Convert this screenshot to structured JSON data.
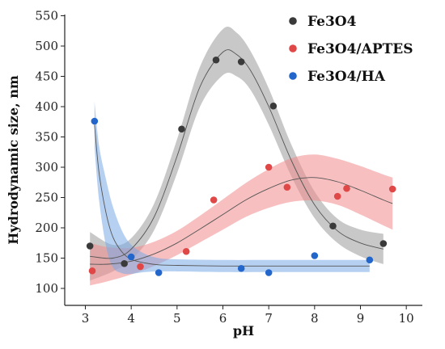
{
  "chart_data": {
    "type": "scatter",
    "xlabel": "pH",
    "ylabel": "Hydrodynamic size, nm",
    "xlim": [
      2.55,
      10.35
    ],
    "ylim": [
      72,
      552
    ],
    "x_ticks": [
      "3",
      "4",
      "5",
      "6",
      "7",
      "8",
      "9",
      "10"
    ],
    "y_ticks": [
      "100",
      "150",
      "200",
      "250",
      "300",
      "350",
      "400",
      "450",
      "500",
      "550"
    ],
    "grid": false,
    "legend_position": "top-right",
    "series": [
      {
        "name": "Fe3O4",
        "color": "#3a3a3a",
        "band_color": "#9a9a9a",
        "x": [
          3.1,
          3.85,
          5.1,
          5.85,
          6.4,
          7.1,
          8.4,
          9.5
        ],
        "y": [
          170,
          141,
          363,
          477,
          474,
          401,
          203,
          174
        ],
        "fit_x": [
          3.1,
          3.6,
          4.0,
          4.5,
          5.0,
          5.5,
          6.0,
          6.3,
          6.6,
          7.0,
          7.5,
          8.0,
          8.5,
          9.0,
          9.5
        ],
        "fit_y": [
          153,
          150,
          165,
          218,
          318,
          433,
          490,
          486,
          460,
          400,
          310,
          238,
          195,
          175,
          165
        ],
        "band_half_width": [
          40,
          22,
          18,
          22,
          28,
          33,
          38,
          36,
          32,
          30,
          26,
          22,
          20,
          22,
          25
        ]
      },
      {
        "name": "Fe3O4/APTES",
        "color": "#e04848",
        "band_color": "#f08a8a",
        "x": [
          3.15,
          4.2,
          5.2,
          5.8,
          7.0,
          7.4,
          8.5,
          8.7,
          9.7
        ],
        "y": [
          129,
          136,
          161,
          246,
          300,
          267,
          252,
          265,
          264
        ],
        "fit_x": [
          3.1,
          3.5,
          4.0,
          4.5,
          5.0,
          5.5,
          6.0,
          6.5,
          7.0,
          7.5,
          8.0,
          8.5,
          9.0,
          9.5,
          9.7
        ],
        "fit_y": [
          140,
          140,
          145,
          157,
          175,
          198,
          222,
          246,
          265,
          279,
          283,
          276,
          262,
          246,
          240
        ],
        "band_half_width": [
          35,
          28,
          22,
          20,
          20,
          22,
          25,
          28,
          32,
          36,
          38,
          38,
          40,
          42,
          43
        ]
      },
      {
        "name": "Fe3O4/HA",
        "color": "#2266cc",
        "band_color": "#7aaae6",
        "x": [
          3.2,
          4.0,
          4.6,
          6.4,
          7.0,
          8.0,
          9.2
        ],
        "y": [
          376,
          152,
          126,
          133,
          126,
          154,
          147
        ],
        "fit_x": [
          3.2,
          3.3,
          3.45,
          3.6,
          3.8,
          4.0,
          4.3,
          4.6,
          5.0,
          6.0,
          7.0,
          8.0,
          9.2
        ],
        "fit_y": [
          370,
          290,
          225,
          185,
          160,
          148,
          142,
          139,
          138,
          137,
          137,
          137,
          137
        ],
        "band_half_width": [
          38,
          45,
          55,
          50,
          35,
          24,
          15,
          11,
          10,
          10,
          10,
          10,
          10
        ]
      }
    ]
  }
}
